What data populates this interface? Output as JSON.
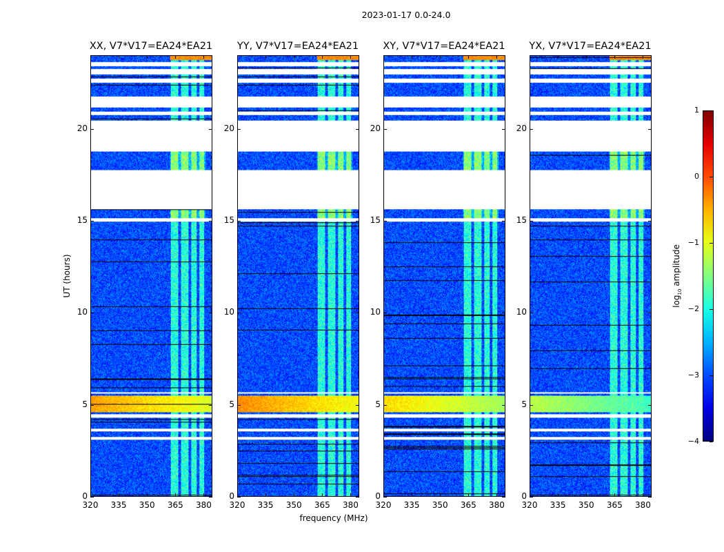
{
  "chart_data": {
    "type": "heatmap",
    "title": "2023-01-17 0.0-24.0",
    "xlabel": "frequency (MHz)",
    "ylabel": "UT (hours)",
    "xlim": [
      320,
      384.6
    ],
    "ylim": [
      0,
      24
    ],
    "xticks": [
      "320",
      "335",
      "350",
      "365",
      "380"
    ],
    "xtick_values": [
      320,
      335,
      350,
      365,
      380
    ],
    "yticks": [
      "0",
      "5",
      "10",
      "15",
      "20"
    ],
    "ytick_values": [
      0,
      5,
      10,
      15,
      20
    ],
    "panels": [
      {
        "title": "XX, V7*V17=EA24*EA21",
        "strong_band_level": -0.4
      },
      {
        "title": "YY, V7*V17=EA24*EA21",
        "strong_band_level": -0.3
      },
      {
        "title": "XY, V7*V17=EA24*EA21",
        "strong_band_level": -0.7
      },
      {
        "title": "YX, V7*V17=EA24*EA21",
        "strong_band_level": -1.2
      }
    ],
    "data_time_ranges_hours": [
      [
        0,
        3.1
      ],
      [
        3.25,
        3.55
      ],
      [
        3.7,
        4.3
      ],
      [
        4.5,
        5.6
      ],
      [
        5.7,
        15.0
      ],
      [
        15.15,
        15.65
      ],
      [
        17.8,
        18.8
      ],
      [
        20.5,
        20.8
      ],
      [
        21.0,
        21.2
      ],
      [
        21.8,
        22.55
      ],
      [
        22.8,
        23.0
      ],
      [
        23.3,
        23.45
      ],
      [
        23.7,
        24.2
      ]
    ],
    "rfi_subbands_mhz": [
      [
        362.5,
        366.5
      ],
      [
        368,
        372
      ],
      [
        373.5,
        376.5
      ],
      [
        378,
        380.5
      ]
    ],
    "background_level": -3.0,
    "colorbar": {
      "label": "log10 amplitude",
      "label_main": "log",
      "label_sub": "10",
      "label_rest": " amplitude",
      "range": [
        -4,
        1
      ],
      "ticks": [
        "1",
        "0",
        "−1",
        "−2",
        "−3",
        "−4"
      ],
      "tick_values": [
        1,
        0,
        -1,
        -2,
        -3,
        -4
      ],
      "colormap": "jet"
    }
  }
}
